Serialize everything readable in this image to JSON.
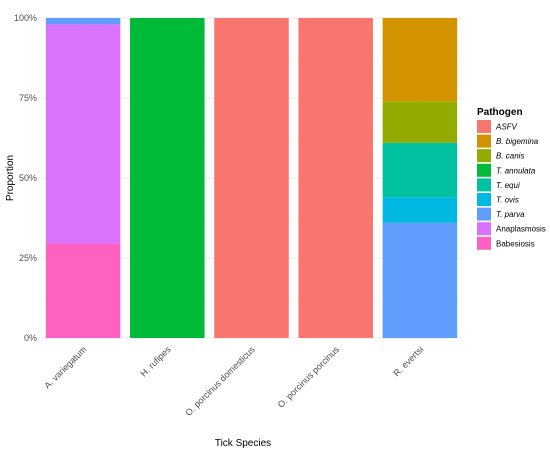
{
  "chart_data": {
    "type": "bar",
    "stacked": true,
    "xlabel": "Tick Species",
    "ylabel": "Proportion",
    "y_tick_labels": [
      "0%",
      "25%",
      "50%",
      "75%",
      "100%"
    ],
    "ylim": [
      0,
      1
    ],
    "grid": true,
    "legend_position": "right",
    "legend_title": "Pathogen",
    "categories": [
      "A. variegatum",
      "H. rufipes",
      "O. porcinus domesticus",
      "O. porcinus porcinus",
      "R. evertsi"
    ],
    "series": [
      {
        "name": "ASFV",
        "italic": true,
        "color": "#F8766D",
        "values": [
          0,
          0,
          1,
          1,
          0
        ]
      },
      {
        "name": "B. bigemina",
        "italic": true,
        "color": "#D39200",
        "values": [
          0,
          0,
          0,
          0,
          0.26
        ]
      },
      {
        "name": "B. canis",
        "italic": true,
        "color": "#93AA00",
        "values": [
          0,
          0,
          0,
          0,
          0.13
        ]
      },
      {
        "name": "T. annulata",
        "italic": true,
        "color": "#00BA38",
        "values": [
          0,
          1,
          0,
          0,
          0
        ]
      },
      {
        "name": "T. equi",
        "italic": true,
        "color": "#00C19F",
        "values": [
          0,
          0,
          0,
          0,
          0.17
        ]
      },
      {
        "name": "T. ovis",
        "italic": true,
        "color": "#00B9E3",
        "values": [
          0,
          0,
          0,
          0,
          0.08
        ]
      },
      {
        "name": "T. parva",
        "italic": true,
        "color": "#619CFF",
        "values": [
          0.02,
          0,
          0,
          0,
          0.36
        ]
      },
      {
        "name": "Anaplasmosis",
        "italic": false,
        "color": "#DB72FB",
        "values": [
          0.685,
          0,
          0,
          0,
          0
        ]
      },
      {
        "name": "Babesiosis",
        "italic": false,
        "color": "#FF61C3",
        "values": [
          0.295,
          0,
          0,
          0,
          0
        ]
      }
    ]
  }
}
